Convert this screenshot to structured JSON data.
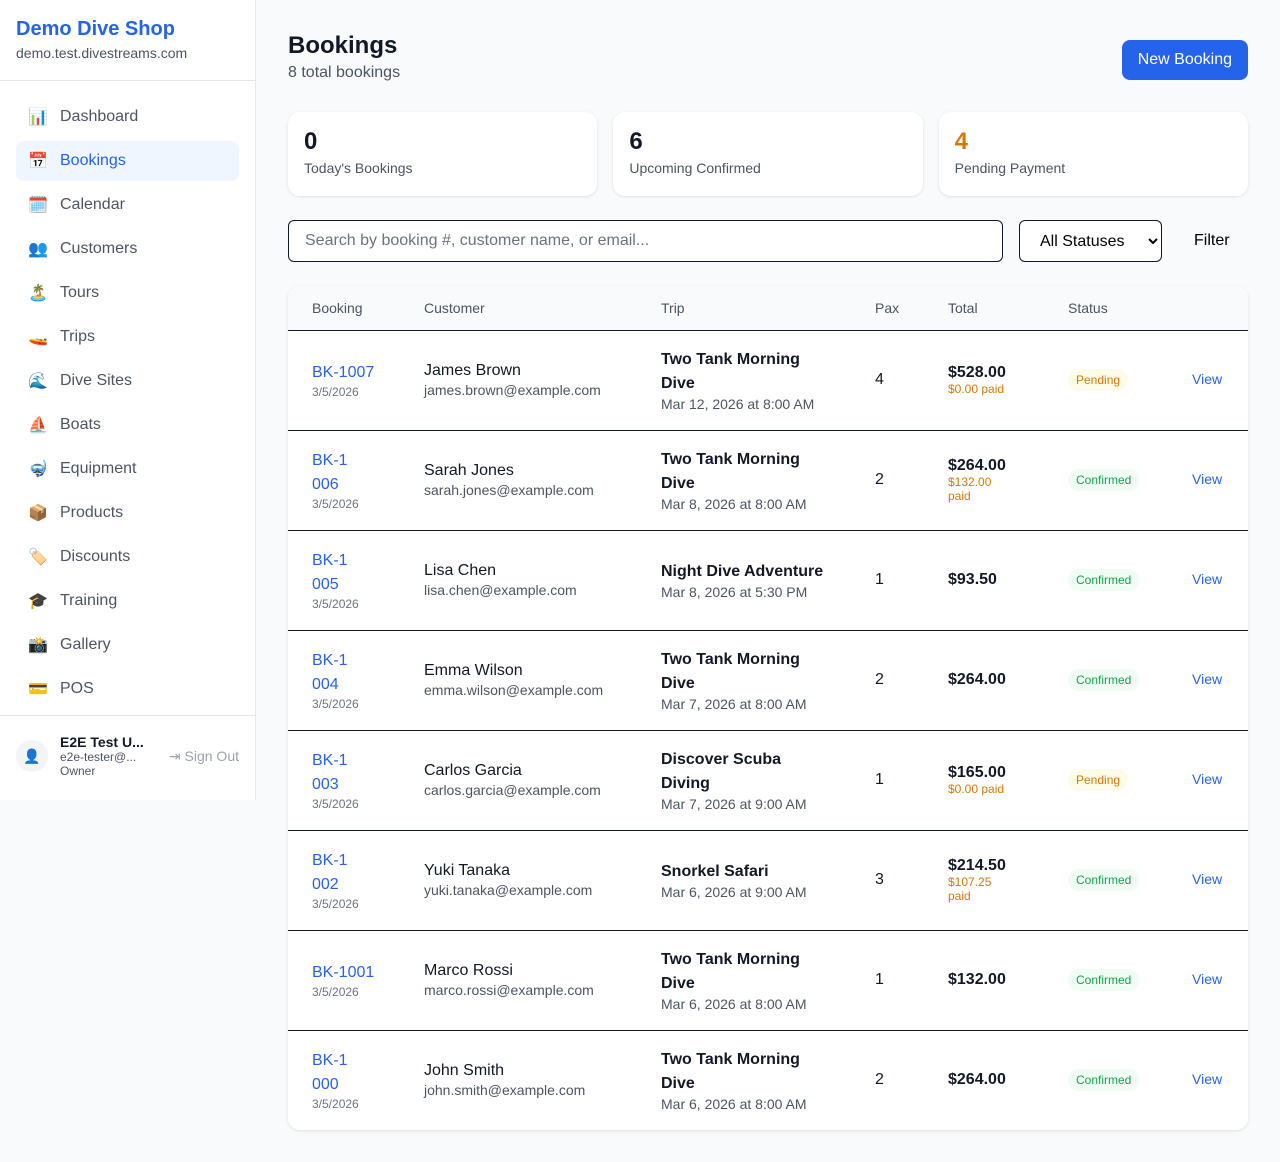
{
  "sidebar": {
    "brand": "Demo Dive Shop",
    "domain": "demo.test.divestreams.com",
    "items": [
      {
        "icon": "📊",
        "label": "Dashboard"
      },
      {
        "icon": "📅",
        "label": "Bookings",
        "active": true
      },
      {
        "icon": "🗓️",
        "label": "Calendar"
      },
      {
        "icon": "👥",
        "label": "Customers"
      },
      {
        "icon": "🏝️",
        "label": "Tours"
      },
      {
        "icon": "🚤",
        "label": "Trips"
      },
      {
        "icon": "🌊",
        "label": "Dive Sites"
      },
      {
        "icon": "⛵",
        "label": "Boats"
      },
      {
        "icon": "🤿",
        "label": "Equipment"
      },
      {
        "icon": "📦",
        "label": "Products"
      },
      {
        "icon": "🏷️",
        "label": "Discounts"
      },
      {
        "icon": "🎓",
        "label": "Training"
      },
      {
        "icon": "📸",
        "label": "Gallery"
      },
      {
        "icon": "💳",
        "label": "POS"
      }
    ],
    "user": {
      "name": "E2E Test U...",
      "email": "e2e-tester@...",
      "role": "Owner",
      "sign_out": "Sign Out"
    }
  },
  "header": {
    "title": "Bookings",
    "subtitle": "8 total bookings",
    "new_button": "New Booking"
  },
  "stats": [
    {
      "value": "0",
      "label": "Today's Bookings",
      "color": "#111827"
    },
    {
      "value": "6",
      "label": "Upcoming Confirmed",
      "color": "#111827"
    },
    {
      "value": "4",
      "label": "Pending Payment",
      "color": "#d97706"
    }
  ],
  "filters": {
    "search_placeholder": "Search by booking #, customer name, or email...",
    "status_selected": "All Statuses",
    "filter_button": "Filter"
  },
  "table": {
    "headers": [
      "Booking",
      "Customer",
      "Trip",
      "Pax",
      "Total",
      "Status",
      ""
    ],
    "view_label": "View",
    "rows": [
      {
        "id": "BK-1007",
        "date": "3/5/2026",
        "name": "James Brown",
        "email": "james.brown@example.com",
        "trip": "Two Tank Morning Dive",
        "trip_date": "Mar 12, 2026 at 8:00 AM",
        "pax": "4",
        "total": "$528.00",
        "paid": "$0.00 paid",
        "status": "Pending"
      },
      {
        "id": "BK-1006",
        "date": "3/5/2026",
        "name": "Sarah Jones",
        "email": "sarah.jones@example.com",
        "trip": "Two Tank Morning Dive",
        "trip_date": "Mar 8, 2026 at 8:00 AM",
        "pax": "2",
        "total": "$264.00",
        "paid": "$132.00 paid",
        "status": "Confirmed"
      },
      {
        "id": "BK-1005",
        "date": "3/5/2026",
        "name": "Lisa Chen",
        "email": "lisa.chen@example.com",
        "trip": "Night Dive Adventure",
        "trip_date": "Mar 8, 2026 at 5:30 PM",
        "pax": "1",
        "total": "$93.50",
        "paid": "",
        "status": "Confirmed"
      },
      {
        "id": "BK-1004",
        "date": "3/5/2026",
        "name": "Emma Wilson",
        "email": "emma.wilson@example.com",
        "trip": "Two Tank Morning Dive",
        "trip_date": "Mar 7, 2026 at 8:00 AM",
        "pax": "2",
        "total": "$264.00",
        "paid": "",
        "status": "Confirmed"
      },
      {
        "id": "BK-1003",
        "date": "3/5/2026",
        "name": "Carlos Garcia",
        "email": "carlos.garcia@example.com",
        "trip": "Discover Scuba Diving",
        "trip_date": "Mar 7, 2026 at 9:00 AM",
        "pax": "1",
        "total": "$165.00",
        "paid": "$0.00 paid",
        "status": "Pending"
      },
      {
        "id": "BK-1002",
        "date": "3/5/2026",
        "name": "Yuki Tanaka",
        "email": "yuki.tanaka@example.com",
        "trip": "Snorkel Safari",
        "trip_date": "Mar 6, 2026 at 9:00 AM",
        "pax": "3",
        "total": "$214.50",
        "paid": "$107.25 paid",
        "status": "Confirmed"
      },
      {
        "id": "BK-1001",
        "date": "3/5/2026",
        "name": "Marco Rossi",
        "email": "marco.rossi@example.com",
        "trip": "Two Tank Morning Dive",
        "trip_date": "Mar 6, 2026 at 8:00 AM",
        "pax": "1",
        "total": "$132.00",
        "paid": "",
        "status": "Confirmed"
      },
      {
        "id": "BK-1000",
        "date": "3/5/2026",
        "name": "John Smith",
        "email": "john.smith@example.com",
        "trip": "Two Tank Morning Dive",
        "trip_date": "Mar 6, 2026 at 8:00 AM",
        "pax": "2",
        "total": "$264.00",
        "paid": "",
        "status": "Confirmed"
      }
    ]
  }
}
